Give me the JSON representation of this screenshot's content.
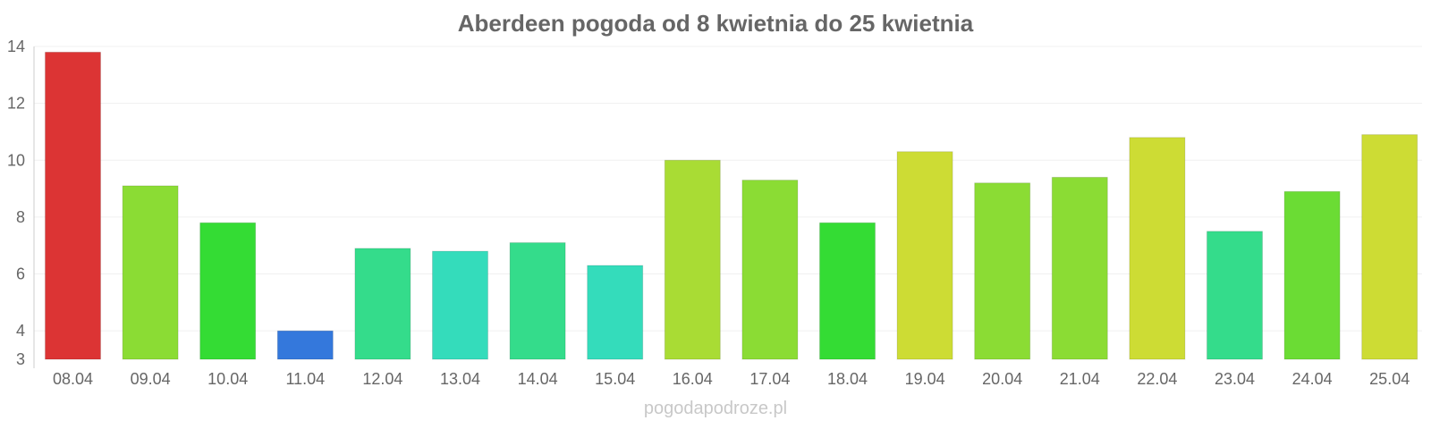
{
  "chart_data": {
    "type": "bar",
    "title": "Aberdeen pogoda od 8 kwietnia do 25 kwietnia",
    "xlabel": "",
    "ylabel": "",
    "ylim": [
      3,
      14
    ],
    "yticks": [
      3,
      4,
      6,
      8,
      10,
      12,
      14
    ],
    "grid": true,
    "legend": "none",
    "categories": [
      "08.04",
      "09.04",
      "10.04",
      "11.04",
      "12.04",
      "13.04",
      "14.04",
      "15.04",
      "16.04",
      "17.04",
      "18.04",
      "19.04",
      "20.04",
      "21.04",
      "22.04",
      "23.04",
      "24.04",
      "25.04"
    ],
    "values": [
      13.8,
      9.1,
      7.8,
      4.0,
      6.9,
      6.8,
      7.1,
      6.3,
      10.0,
      9.3,
      7.8,
      10.3,
      9.2,
      9.4,
      10.8,
      7.5,
      8.9,
      10.9
    ],
    "colors": [
      "#dc3434",
      "#8bdc34",
      "#34dc34",
      "#3478dc",
      "#34dc8b",
      "#34dcbb",
      "#34dc8b",
      "#34dcbb",
      "#a9dc34",
      "#8bdc34",
      "#34dc34",
      "#cddc34",
      "#8bdc34",
      "#8bdc34",
      "#cddc34",
      "#34dc8b",
      "#6bdc34",
      "#cddc34"
    ]
  },
  "watermark": "pogodapodroze.pl"
}
